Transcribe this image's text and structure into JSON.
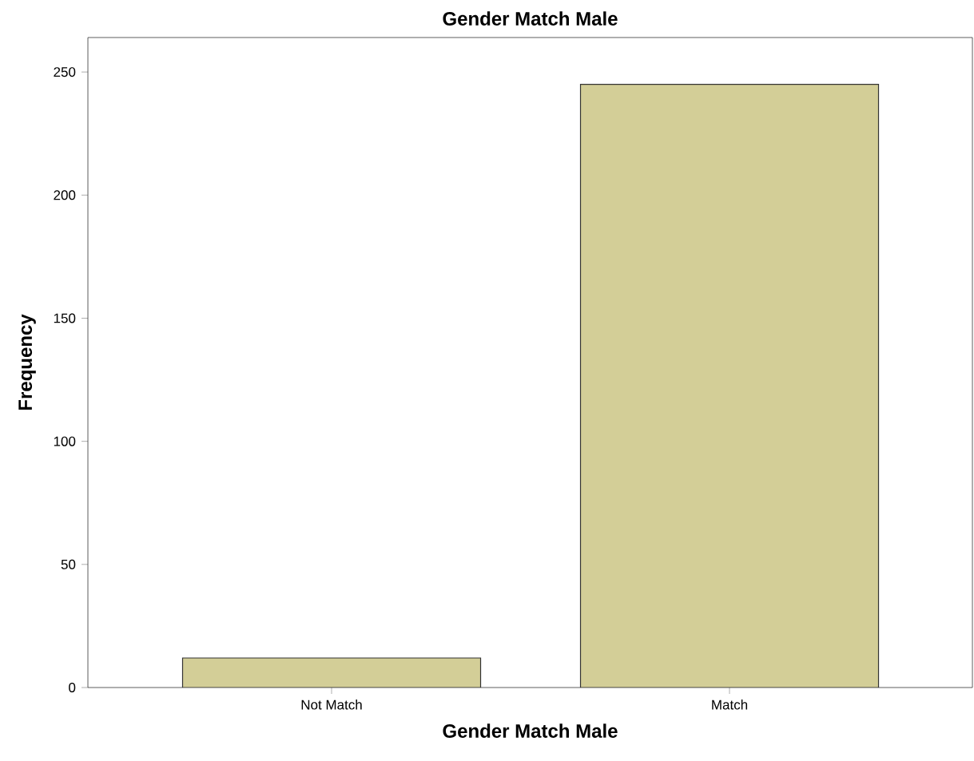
{
  "chart_data": {
    "type": "bar",
    "title": "Gender Match Male",
    "xlabel": "Gender Match Male",
    "ylabel": "Frequency",
    "categories": [
      "Not Match",
      "Match"
    ],
    "values": [
      12,
      245
    ],
    "color": "#d3ce97",
    "ylim": [
      0,
      264
    ],
    "yticks": [
      0,
      50,
      100,
      150,
      200,
      250
    ]
  }
}
